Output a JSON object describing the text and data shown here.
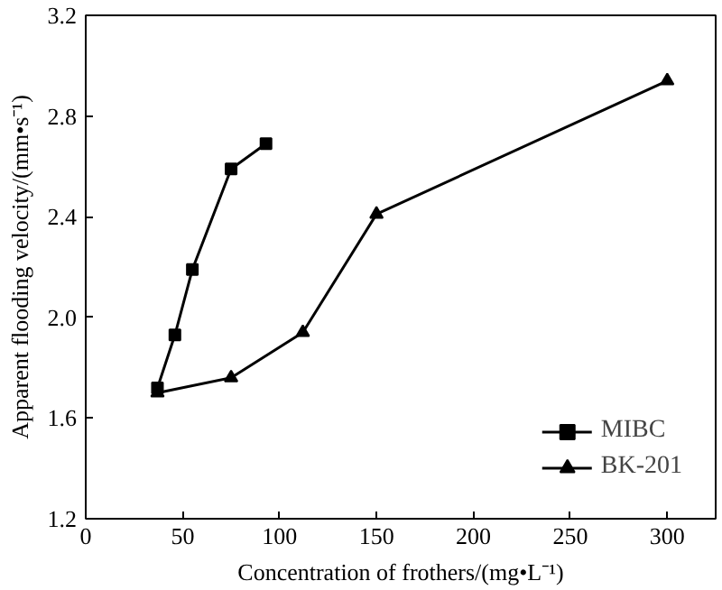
{
  "chart_data": {
    "type": "line",
    "xlabel": "Concentration of frothers/(mg•L⁻¹)",
    "ylabel": "Apparent flooding velocity/(mm•s⁻¹)",
    "xlim": [
      0,
      325
    ],
    "xticks": [
      0,
      50,
      100,
      150,
      200,
      250,
      300
    ],
    "ylim": [
      1.2,
      3.2
    ],
    "yticks": [
      1.2,
      1.6,
      {
        "value": 2,
        "label": "2.0"
      },
      2.4,
      2.8,
      3.2
    ],
    "grid": false,
    "legend": "bottom right",
    "line_style": "solid",
    "series": [
      {
        "name": "MIBC",
        "color": "#000000",
        "marker": "square",
        "x": [
          37,
          46,
          55,
          75,
          93
        ],
        "values": [
          1.72,
          1.93,
          2.19,
          2.59,
          2.69
        ]
      },
      {
        "name": "BK-201",
        "color": "#000000",
        "marker": "triangle",
        "x": [
          37,
          75,
          112,
          150,
          300
        ],
        "values": [
          1.7,
          1.76,
          1.94,
          2.41,
          2.94
        ]
      }
    ]
  }
}
